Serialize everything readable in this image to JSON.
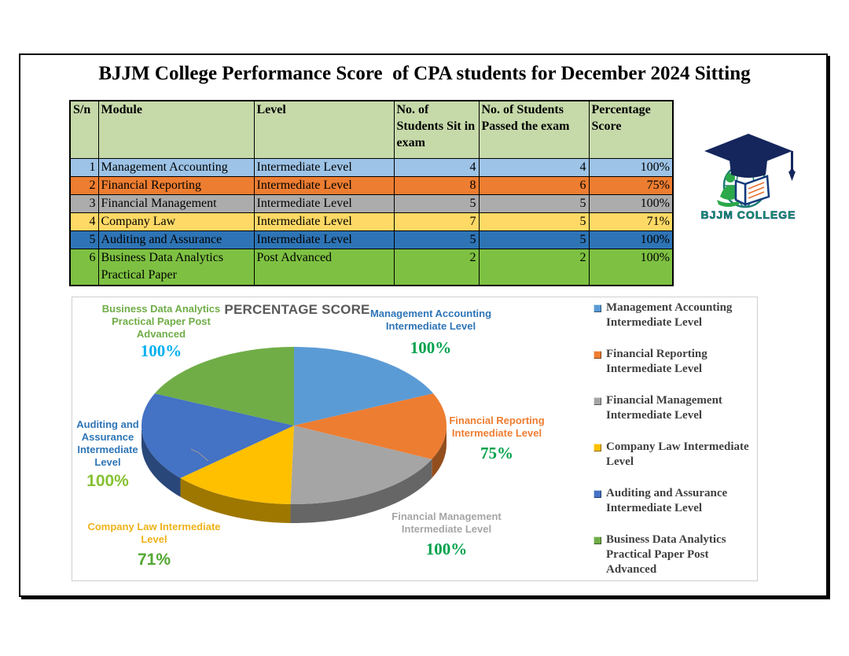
{
  "page": {
    "title": "BJJM College Performance Score  of CPA students for December 2024 Sitting"
  },
  "logo": {
    "name": "BJJM COLLEGE"
  },
  "table": {
    "headers": {
      "sn": "S/n",
      "module": "Module",
      "level": "Level",
      "sat": "No. of Students Sit in exam",
      "passed": "No. of Students Passed the exam",
      "score": "Percentage Score"
    },
    "rows": [
      {
        "sn": "1",
        "module": "Management Accounting",
        "level": "Intermediate Level",
        "sat": "4",
        "passed": "4",
        "score": "100%",
        "color": "#9DC3E6"
      },
      {
        "sn": "2",
        "module": "Financial Reporting",
        "level": "Intermediate Level",
        "sat": "8",
        "passed": "6",
        "score": "75%",
        "color": "#ED7D31"
      },
      {
        "sn": "3",
        "module": "Financial Management",
        "level": "Intermediate Level",
        "sat": "5",
        "passed": "5",
        "score": "100%",
        "color": "#ACACAC"
      },
      {
        "sn": "4",
        "module": "Company Law",
        "level": "Intermediate Level",
        "sat": "7",
        "passed": "5",
        "score": "71%",
        "color": "#FFD965"
      },
      {
        "sn": "5",
        "module": "Auditing and Assurance",
        "level": "Intermediate Level",
        "sat": "5",
        "passed": "5",
        "score": "100%",
        "color": "#2E74B5"
      },
      {
        "sn": "6",
        "module": "Business Data Analytics Practical Paper",
        "level": "Post Advanced",
        "sat": "2",
        "passed": "2",
        "score": "100%",
        "color": "#7EC142"
      }
    ]
  },
  "chart_data": {
    "type": "pie",
    "title": "PERCENTAGE SCORE",
    "legend_position": "right",
    "effect": "3d",
    "slices": [
      {
        "label": "Management Accounting Intermediate Level",
        "label_lines": "Management Accounting\nIntermediate Level",
        "value": 100,
        "display": "100%",
        "color": "#5B9BD5",
        "label_color": "#2E75B6",
        "value_color": "#00A14B"
      },
      {
        "label": "Financial Reporting Intermediate Level",
        "label_lines": "Financial Reporting\nIntermediate Level",
        "value": 75,
        "display": "75%",
        "color": "#ED7D31",
        "label_color": "#ED7D31",
        "value_color": "#00A14B"
      },
      {
        "label": "Financial Management Intermediate Level",
        "label_lines": "Financial Management\nIntermediate Level",
        "value": 100,
        "display": "100%",
        "color": "#A5A5A5",
        "label_color": "#A6A6A6",
        "value_color": "#00A14B"
      },
      {
        "label": "Company Law Intermediate Level",
        "label_lines": "Company Law Intermediate\nLevel",
        "value": 71,
        "display": "71%",
        "color": "#FFC000",
        "label_color": "#EFB219",
        "value_color": "#53A733"
      },
      {
        "label": "Auditing and Assurance Intermediate Level",
        "label_lines": "Auditing and\nAssurance\nIntermediate\nLevel",
        "value": 100,
        "display": "100%",
        "color": "#4472C4",
        "label_color": "#2E75B6",
        "value_color": "#86C232"
      },
      {
        "label": "Business Data Analytics Practical Paper Post Advanced",
        "label_lines": "Business Data Analytics\nPractical Paper Post\nAdvanced",
        "value": 100,
        "display": "100%",
        "color": "#70AD47",
        "label_color": "#70AD47",
        "value_color": "#00B0F0"
      }
    ]
  }
}
